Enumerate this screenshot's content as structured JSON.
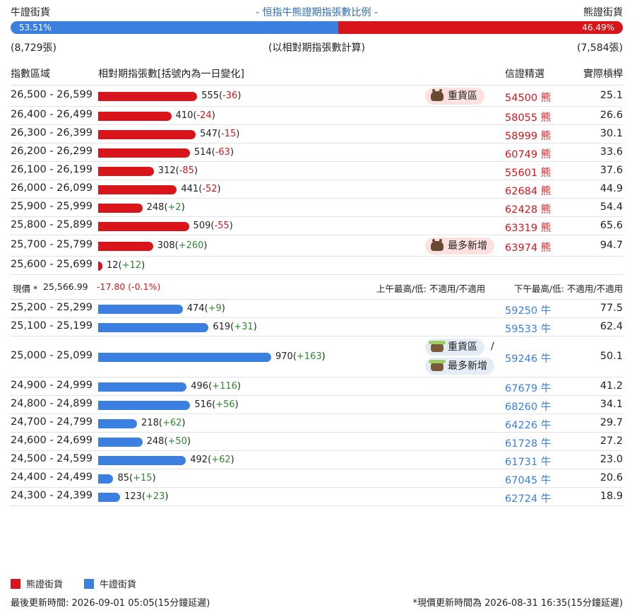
{
  "header": {
    "bull_title": "牛證街貨",
    "bear_title": "熊證街貨",
    "center_title": "- 恒指牛熊證期指張數比例 -",
    "bull_pct": "53.51%",
    "bear_pct": "46.49%",
    "bull_count": "(8,729張)",
    "bear_count": "(7,584張)",
    "center_note": "(以相對期指張數計算)"
  },
  "columns": {
    "range": "指數區域",
    "count": "相對期指張數[括號內為一日變化]",
    "pick": "信證精選",
    "leverage": "實際槓桿"
  },
  "spot": {
    "label": "現價 *",
    "price": "25,566.99",
    "change": "-17.80 (-0.1%)",
    "am": "上午最高/低: 不適用/不適用",
    "pm": "下午最高/低: 不適用/不適用"
  },
  "tags": {
    "heavy": "重貨區",
    "most_new": "最多新增",
    "slash": "/"
  },
  "legend": {
    "bear": "熊證街貨",
    "bull": "牛證街貨"
  },
  "footer": {
    "left": "最後更新時間: 2026-09-01 05:05(15分鐘延遲)",
    "right": "*現價更新時間為 2026-08-31 16:35(15分鐘延遲)"
  },
  "colors": {
    "bear": "#d9141b",
    "bull": "#3b7fe0",
    "positive": "#2e8b2e"
  },
  "chart_data": {
    "type": "bar",
    "title": "- 恒指牛熊證期指張數比例 -",
    "bear_rows": [
      {
        "range": "26,500 - 26,599",
        "value": 555,
        "change": "-36",
        "code": "54500",
        "code_suffix": "熊",
        "leverage": "25.1",
        "tag": "heavy"
      },
      {
        "range": "26,400 - 26,499",
        "value": 410,
        "change": "-24",
        "code": "58055",
        "code_suffix": "熊",
        "leverage": "26.6"
      },
      {
        "range": "26,300 - 26,399",
        "value": 547,
        "change": "-15",
        "code": "58999",
        "code_suffix": "熊",
        "leverage": "30.1"
      },
      {
        "range": "26,200 - 26,299",
        "value": 514,
        "change": "-63",
        "code": "60749",
        "code_suffix": "熊",
        "leverage": "33.6"
      },
      {
        "range": "26,100 - 26,199",
        "value": 312,
        "change": "-85",
        "code": "55601",
        "code_suffix": "熊",
        "leverage": "37.6"
      },
      {
        "range": "26,000 - 26,099",
        "value": 441,
        "change": "-52",
        "code": "62684",
        "code_suffix": "熊",
        "leverage": "44.9"
      },
      {
        "range": "25,900 - 25,999",
        "value": 248,
        "change": "+2",
        "code": "62428",
        "code_suffix": "熊",
        "leverage": "54.4"
      },
      {
        "range": "25,800 - 25,899",
        "value": 509,
        "change": "-55",
        "code": "63319",
        "code_suffix": "熊",
        "leverage": "65.6"
      },
      {
        "range": "25,700 - 25,799",
        "value": 308,
        "change": "+260",
        "code": "63974",
        "code_suffix": "熊",
        "leverage": "94.7",
        "tag": "most_new"
      },
      {
        "range": "25,600 - 25,699",
        "value": 12,
        "change": "+12",
        "code": "",
        "code_suffix": "",
        "leverage": ""
      }
    ],
    "bull_rows": [
      {
        "range": "25,200 - 25,299",
        "value": 474,
        "change": "+9",
        "code": "59250",
        "code_suffix": "牛",
        "leverage": "77.5"
      },
      {
        "range": "25,100 - 25,199",
        "value": 619,
        "change": "+31",
        "code": "59533",
        "code_suffix": "牛",
        "leverage": "62.4"
      },
      {
        "range": "25,000 - 25,099",
        "value": 970,
        "change": "+163",
        "code": "59246",
        "code_suffix": "牛",
        "leverage": "50.1",
        "tag": "both"
      },
      {
        "range": "24,900 - 24,999",
        "value": 496,
        "change": "+116",
        "code": "67679",
        "code_suffix": "牛",
        "leverage": "41.2"
      },
      {
        "range": "24,800 - 24,899",
        "value": 516,
        "change": "+56",
        "code": "68260",
        "code_suffix": "牛",
        "leverage": "34.1"
      },
      {
        "range": "24,700 - 24,799",
        "value": 218,
        "change": "+62",
        "code": "64226",
        "code_suffix": "牛",
        "leverage": "29.7"
      },
      {
        "range": "24,600 - 24,699",
        "value": 248,
        "change": "+50",
        "code": "61728",
        "code_suffix": "牛",
        "leverage": "27.2"
      },
      {
        "range": "24,500 - 24,599",
        "value": 492,
        "change": "+62",
        "code": "61731",
        "code_suffix": "牛",
        "leverage": "23.0"
      },
      {
        "range": "24,400 - 24,499",
        "value": 85,
        "change": "+15",
        "code": "67045",
        "code_suffix": "牛",
        "leverage": "20.6"
      },
      {
        "range": "24,300 - 24,399",
        "value": 123,
        "change": "+23",
        "code": "62724",
        "code_suffix": "牛",
        "leverage": "18.9"
      }
    ]
  }
}
